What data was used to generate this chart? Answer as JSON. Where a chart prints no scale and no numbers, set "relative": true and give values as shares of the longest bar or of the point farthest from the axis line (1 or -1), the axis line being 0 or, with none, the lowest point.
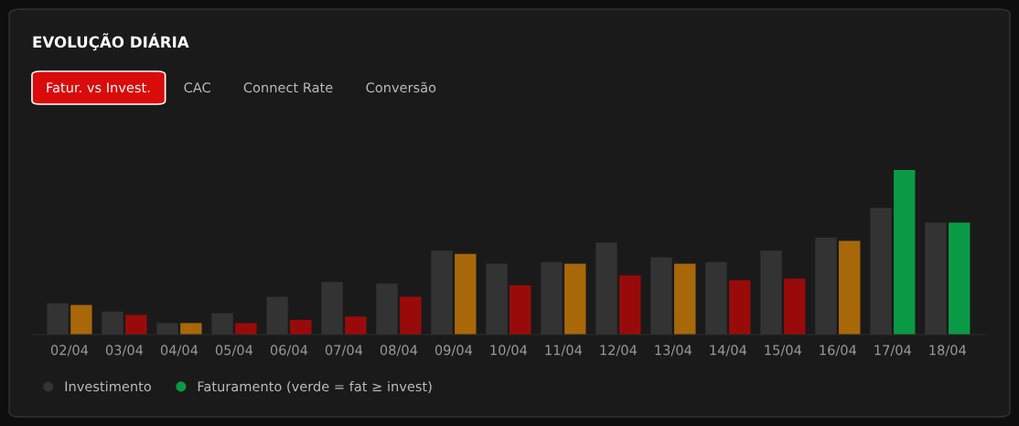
{
  "chart_data": {
    "type": "bar",
    "title": "EVOLUÇÃO DIÁRIA",
    "annotations": [
      "Fatur. vs Invest.",
      "CAC",
      "Connect Rate",
      "Conversão"
    ],
    "relative": true,
    "categories": [
      "02/04",
      "03/04",
      "04/04",
      "05/04",
      "06/04",
      "07/04",
      "08/04",
      "09/04",
      "10/04",
      "11/04",
      "12/04",
      "13/04",
      "14/04",
      "15/04",
      "16/04",
      "17/04",
      "18/04"
    ],
    "series": [
      {
        "name": "Investimento",
        "color": "#333333",
        "values": [
          0.19,
          0.14,
          0.07,
          0.13,
          0.23,
          0.32,
          0.31,
          0.51,
          0.43,
          0.44,
          0.56,
          0.47,
          0.44,
          0.51,
          0.59,
          0.77,
          0.68
        ]
      },
      {
        "name": "Faturamento (verde = fat ≥ invest)",
        "color": "#0a9a45",
        "colors": [
          "#a8680a",
          "#990b0b",
          "#a8680a",
          "#990b0b",
          "#990b0b",
          "#990b0b",
          "#990b0b",
          "#a8680a",
          "#990b0b",
          "#a8680a",
          "#990b0b",
          "#a8680a",
          "#990b0b",
          "#990b0b",
          "#a8680a",
          "#0a9a45",
          "#0a9a45"
        ],
        "values": [
          0.18,
          0.12,
          0.07,
          0.07,
          0.09,
          0.11,
          0.23,
          0.49,
          0.3,
          0.43,
          0.36,
          0.43,
          0.33,
          0.34,
          0.57,
          1.0,
          0.68
        ]
      }
    ],
    "legend": "bottom left",
    "tick_labels": "x",
    "grid": false
  }
}
